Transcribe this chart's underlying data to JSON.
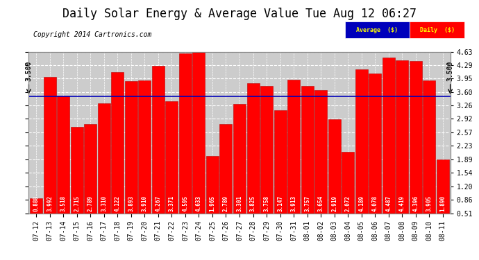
{
  "title": "Daily Solar Energy & Average Value Tue Aug 12 06:27",
  "copyright": "Copyright 2014 Cartronics.com",
  "categories": [
    "07-12",
    "07-13",
    "07-14",
    "07-15",
    "07-16",
    "07-17",
    "07-18",
    "07-19",
    "07-20",
    "07-21",
    "07-22",
    "07-23",
    "07-24",
    "07-25",
    "07-26",
    "07-27",
    "07-28",
    "07-29",
    "07-30",
    "07-31",
    "08-01",
    "08-02",
    "08-03",
    "08-04",
    "08-05",
    "08-06",
    "08-07",
    "08-08",
    "08-09",
    "08-10",
    "08-11"
  ],
  "values": [
    0.888,
    3.992,
    3.518,
    2.715,
    2.789,
    3.31,
    4.122,
    3.893,
    3.91,
    4.267,
    3.371,
    4.595,
    4.633,
    1.965,
    2.789,
    3.301,
    3.825,
    3.758,
    3.147,
    3.913,
    3.757,
    3.654,
    2.919,
    2.072,
    4.189,
    4.078,
    4.487,
    4.419,
    4.396,
    3.905,
    1.89
  ],
  "average_line": 3.5,
  "bar_color": "#FF0000",
  "bar_edge_color": "#BB0000",
  "avg_line_color": "#0000BB",
  "background_color": "#FFFFFF",
  "plot_bg_color": "#CCCCCC",
  "grid_color": "#FFFFFF",
  "ylim_min": 0.51,
  "ylim_max": 4.63,
  "yticks": [
    0.51,
    0.86,
    1.2,
    1.54,
    1.89,
    2.23,
    2.57,
    2.92,
    3.26,
    3.6,
    3.95,
    4.29,
    4.63
  ],
  "legend_avg_color": "#0000BB",
  "legend_daily_color": "#FF0000",
  "legend_text_color": "#FFFF00",
  "title_fontsize": 12,
  "copyright_fontsize": 7,
  "bar_value_fontsize": 5.5,
  "tick_fontsize": 7,
  "avg_label": "3.500",
  "arrow_color": "#000000"
}
